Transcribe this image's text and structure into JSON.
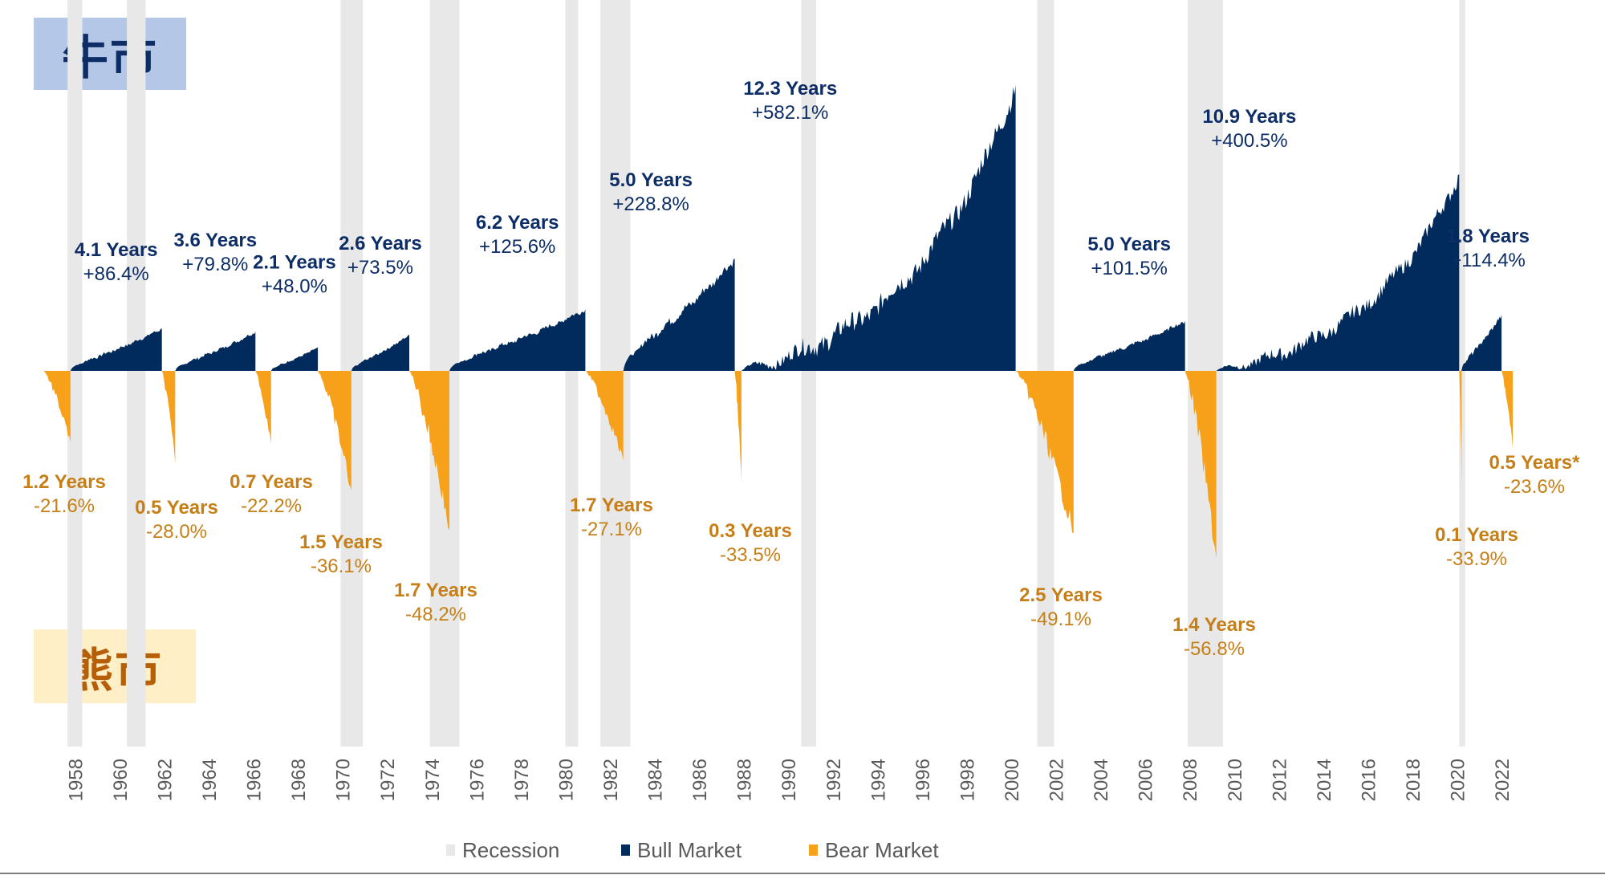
{
  "badges": {
    "bull": "牛市",
    "bear": "熊市"
  },
  "colors": {
    "bull": "#002b5c",
    "bear": "#f7a11a",
    "recession": "#e8e8e8",
    "bull_label": "#0d2d66",
    "bear_label": "#c67f16",
    "axis_text": "#595959"
  },
  "chart_data": {
    "type": "area",
    "x_range": [
      1956.8,
      2023.4
    ],
    "x_ticks": [
      1958,
      1960,
      1962,
      1964,
      1966,
      1968,
      1970,
      1972,
      1974,
      1976,
      1978,
      1980,
      1982,
      1984,
      1986,
      1988,
      1990,
      1992,
      1994,
      1996,
      1998,
      2000,
      2002,
      2004,
      2006,
      2008,
      2010,
      2012,
      2014,
      2016,
      2018,
      2020,
      2022
    ],
    "y_range_percent": [
      -64,
      612
    ],
    "grid": false,
    "legend_position": "bottom",
    "legend": [
      {
        "key": "recession",
        "label": "Recession"
      },
      {
        "key": "bull",
        "label": "Bull Market"
      },
      {
        "key": "bear",
        "label": "Bear Market"
      }
    ],
    "recessions": [
      [
        1957.67,
        1958.33
      ],
      [
        1960.33,
        1961.17
      ],
      [
        1969.92,
        1970.92
      ],
      [
        1973.92,
        1975.25
      ],
      [
        1980.0,
        1980.58
      ],
      [
        1981.58,
        1982.92
      ],
      [
        1990.58,
        1991.25
      ],
      [
        2001.17,
        2001.92
      ],
      [
        2007.92,
        2009.5
      ],
      [
        2020.1,
        2020.37
      ]
    ],
    "bull_markets": [
      {
        "start": 1957.8,
        "end": 1961.9,
        "duration": "4.1 Years",
        "change": "+86.4%",
        "gain_percent": 86.4
      },
      {
        "start": 1962.5,
        "end": 1966.1,
        "duration": "3.6 Years",
        "change": "+79.8%",
        "gain_percent": 79.8
      },
      {
        "start": 1966.8,
        "end": 1968.9,
        "duration": "2.1 Years",
        "change": "+48.0%",
        "gain_percent": 48.0
      },
      {
        "start": 1970.4,
        "end": 1973.0,
        "duration": "2.6 Years",
        "change": "+73.5%",
        "gain_percent": 73.5
      },
      {
        "start": 1974.8,
        "end": 1980.9,
        "duration": "6.2 Years",
        "change": "+125.6%",
        "gain_percent": 125.6
      },
      {
        "start": 1982.6,
        "end": 1987.6,
        "duration": "5.0 Years",
        "change": "+228.8%",
        "gain_percent": 228.8
      },
      {
        "start": 1987.9,
        "end": 2000.2,
        "duration": "12.3 Years",
        "change": "+582.1%",
        "gain_percent": 582.1
      },
      {
        "start": 2002.8,
        "end": 2007.8,
        "duration": "5.0 Years",
        "change": "+101.5%",
        "gain_percent": 101.5
      },
      {
        "start": 2009.2,
        "end": 2020.1,
        "duration": "10.9 Years",
        "change": "+400.5%",
        "gain_percent": 400.5
      },
      {
        "start": 2020.2,
        "end": 2022.0,
        "duration": "1.8 Years",
        "change": "+114.4%",
        "gain_percent": 114.4
      }
    ],
    "bear_markets": [
      {
        "start": 1956.6,
        "end": 1957.8,
        "duration": "1.2 Years",
        "change": "-21.6%",
        "loss_percent": -21.6
      },
      {
        "start": 1961.9,
        "end": 1962.5,
        "duration": "0.5 Years",
        "change": "-28.0%",
        "loss_percent": -28.0
      },
      {
        "start": 1966.1,
        "end": 1966.8,
        "duration": "0.7 Years",
        "change": "-22.2%",
        "loss_percent": -22.2
      },
      {
        "start": 1968.9,
        "end": 1970.4,
        "duration": "1.5 Years",
        "change": "-36.1%",
        "loss_percent": -36.1
      },
      {
        "start": 1973.0,
        "end": 1974.8,
        "duration": "1.7 Years",
        "change": "-48.2%",
        "loss_percent": -48.2
      },
      {
        "start": 1980.9,
        "end": 1982.6,
        "duration": "1.7 Years",
        "change": "-27.1%",
        "loss_percent": -27.1
      },
      {
        "start": 1987.6,
        "end": 1987.9,
        "duration": "0.3 Years",
        "change": "-33.5%",
        "loss_percent": -33.5
      },
      {
        "start": 2000.2,
        "end": 2002.8,
        "duration": "2.5 Years",
        "change": "-49.1%",
        "loss_percent": -49.1
      },
      {
        "start": 2007.8,
        "end": 2009.2,
        "duration": "1.4 Years",
        "change": "-56.8%",
        "loss_percent": -56.8
      },
      {
        "start": 2020.1,
        "end": 2020.2,
        "duration": "0.1 Years",
        "change": "-33.9%",
        "loss_percent": -33.9
      },
      {
        "start": 2022.0,
        "end": 2022.5,
        "duration": "0.5 Years*",
        "change": "-23.6%",
        "loss_percent": -23.6
      }
    ]
  }
}
